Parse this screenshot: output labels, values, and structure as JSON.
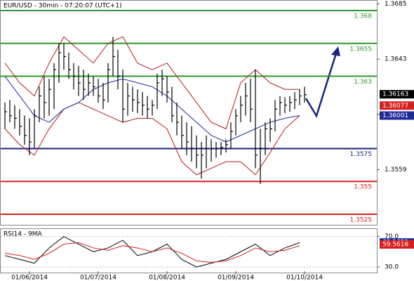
{
  "chart_data": [
    {
      "type": "ohlc",
      "title": "EUR/USD - 30min - 07:20:07 (UTC+1)",
      "x": [
        0,
        1,
        2,
        3,
        4,
        5,
        6,
        7,
        8,
        9,
        10,
        11,
        12,
        13,
        14,
        15,
        16,
        17,
        18,
        19,
        20,
        21,
        22,
        23,
        24,
        25,
        26,
        27,
        28,
        29,
        30,
        31,
        32,
        33,
        34,
        35,
        36,
        37,
        38,
        39,
        40,
        41,
        42,
        43,
        44,
        45,
        46,
        47,
        48,
        49,
        50,
        51,
        52,
        53,
        54,
        55,
        56,
        57,
        58,
        59,
        60,
        61
      ],
      "high": [
        1.361,
        1.3612,
        1.3608,
        1.3605,
        1.36,
        1.3598,
        1.3605,
        1.3622,
        1.363,
        1.3628,
        1.364,
        1.3655,
        1.3655,
        1.3648,
        1.364,
        1.3638,
        1.3635,
        1.3632,
        1.363,
        1.3628,
        1.3625,
        1.364,
        1.366,
        1.365,
        1.3635,
        1.3625,
        1.3622,
        1.362,
        1.3618,
        1.3615,
        1.3612,
        1.3632,
        1.3635,
        1.363,
        1.3622,
        1.361,
        1.36,
        1.3595,
        1.3592,
        1.3585,
        1.358,
        1.3585,
        1.3582,
        1.358,
        1.358,
        1.3582,
        1.3595,
        1.3605,
        1.3615,
        1.3625,
        1.3628,
        1.3635,
        1.359,
        1.3595,
        1.3598,
        1.3612,
        1.3615,
        1.3614,
        1.3615,
        1.3618,
        1.362,
        1.3622
      ],
      "low": [
        1.359,
        1.3595,
        1.359,
        1.3585,
        1.3578,
        1.357,
        1.3575,
        1.3595,
        1.3598,
        1.36,
        1.3605,
        1.3625,
        1.3635,
        1.3628,
        1.362,
        1.3615,
        1.3612,
        1.3615,
        1.3615,
        1.361,
        1.3605,
        1.361,
        1.363,
        1.362,
        1.3595,
        1.36,
        1.3603,
        1.3602,
        1.36,
        1.3598,
        1.36,
        1.3605,
        1.3615,
        1.361,
        1.3595,
        1.3585,
        1.3575,
        1.357,
        1.3565,
        1.356,
        1.3552,
        1.356,
        1.3565,
        1.3568,
        1.357,
        1.3572,
        1.3575,
        1.3585,
        1.3595,
        1.36,
        1.3595,
        1.356,
        1.3548,
        1.357,
        1.358,
        1.3588,
        1.36,
        1.3602,
        1.3603,
        1.3605,
        1.3608,
        1.361
      ],
      "close": [
        1.3603,
        1.36,
        1.3598,
        1.3592,
        1.3585,
        1.358,
        1.36,
        1.3615,
        1.361,
        1.362,
        1.3635,
        1.3648,
        1.3645,
        1.3635,
        1.363,
        1.3625,
        1.362,
        1.3625,
        1.3622,
        1.3615,
        1.3612,
        1.3635,
        1.3645,
        1.363,
        1.3605,
        1.3615,
        1.3612,
        1.361,
        1.3608,
        1.3605,
        1.3608,
        1.3625,
        1.3628,
        1.3618,
        1.36,
        1.3595,
        1.3585,
        1.358,
        1.3575,
        1.357,
        1.357,
        1.3575,
        1.3575,
        1.3575,
        1.3576,
        1.3578,
        1.3588,
        1.36,
        1.3608,
        1.3615,
        1.3605,
        1.357,
        1.3575,
        1.359,
        1.359,
        1.3605,
        1.361,
        1.3608,
        1.361,
        1.3612,
        1.3615,
        1.3616
      ],
      "color": "#000000",
      "overlays": {
        "x": [
          0,
          3,
          6,
          9,
          12,
          15,
          18,
          21,
          24,
          27,
          30,
          33,
          36,
          39,
          42,
          45,
          48,
          51,
          54,
          57,
          60
        ],
        "series": [
          {
            "color": "#b01c1c",
            "values": [
              1.364,
              1.3625,
              1.3615,
              1.364,
              1.366,
              1.365,
              1.364,
              1.3655,
              1.366,
              1.364,
              1.3635,
              1.364,
              1.3625,
              1.361,
              1.3595,
              1.359,
              1.3625,
              1.3635,
              1.3625,
              1.362,
              1.362
            ]
          },
          {
            "color": "#b01c1c",
            "values": [
              1.359,
              1.3578,
              1.357,
              1.359,
              1.3605,
              1.361,
              1.3605,
              1.36,
              1.3595,
              1.3598,
              1.3598,
              1.359,
              1.3565,
              1.3555,
              1.356,
              1.3565,
              1.3565,
              1.3555,
              1.3572,
              1.359,
              1.36
            ]
          },
          {
            "color": "#1f2a9a",
            "values": [
              1.363,
              1.3615,
              1.36,
              1.3595,
              1.3605,
              1.361,
              1.362,
              1.3625,
              1.3628,
              1.3625,
              1.3622,
              1.3615,
              1.3605,
              1.3595,
              1.3585,
              1.358,
              1.3585,
              1.359,
              1.3595,
              1.3598,
              1.36
            ]
          }
        ]
      },
      "levels": [
        {
          "value": 1.368,
          "color": "#2e9a2e"
        },
        {
          "value": 1.3655,
          "color": "#2e9a2e"
        },
        {
          "value": 1.363,
          "color": "#2e9a2e"
        },
        {
          "value": 1.3575,
          "color": "#1a237e"
        },
        {
          "value": 1.355,
          "color": "#d62020"
        },
        {
          "value": 1.3525,
          "color": "#d62020"
        }
      ],
      "markers": [
        {
          "value": 1.36163,
          "color": "#000000"
        },
        {
          "value": 1.36077,
          "color": "#d62020"
        },
        {
          "value": 1.36001,
          "color": "#1f2a9a"
        }
      ],
      "xlim": [
        -1,
        75
      ],
      "ylim": [
        1.3517,
        1.3688
      ],
      "yticks": [
        1.3685,
        1.3643,
        1.3601,
        1.3559
      ],
      "xticks": [
        {
          "value": 5,
          "label": "01/06/2014"
        },
        {
          "value": 19,
          "label": "01/07/2014"
        },
        {
          "value": 33,
          "label": "01/08/2014"
        },
        {
          "value": 47,
          "label": "01/09/2014"
        },
        {
          "value": 61,
          "label": "01/10/2014"
        }
      ]
    },
    {
      "type": "line",
      "title": "RSI14 - 9MA",
      "x": [
        0,
        3,
        6,
        9,
        12,
        15,
        18,
        21,
        24,
        27,
        30,
        33,
        36,
        39,
        42,
        45,
        48,
        51,
        54,
        57,
        60
      ],
      "series": [
        {
          "color": "#000000",
          "values": [
            45,
            40,
            35,
            55,
            70,
            60,
            50,
            55,
            65,
            45,
            50,
            60,
            40,
            30,
            35,
            40,
            50,
            60,
            45,
            55,
            62
          ]
        },
        {
          "color": "#d62020",
          "values": [
            48,
            45,
            40,
            48,
            60,
            62,
            55,
            52,
            58,
            55,
            50,
            55,
            48,
            38,
            36,
            38,
            45,
            55,
            50,
            52,
            58
          ]
        }
      ],
      "markers": [
        {
          "value": 62.1652,
          "color": "#1f2a9a"
        },
        {
          "value": 59.5616,
          "color": "#d62020"
        }
      ],
      "xlim": [
        -1,
        75
      ],
      "ylim": [
        19,
        78
      ],
      "yticks": [
        {
          "value": 70,
          "label": "70.0"
        },
        {
          "value": 30,
          "label": "30.0"
        }
      ]
    }
  ]
}
